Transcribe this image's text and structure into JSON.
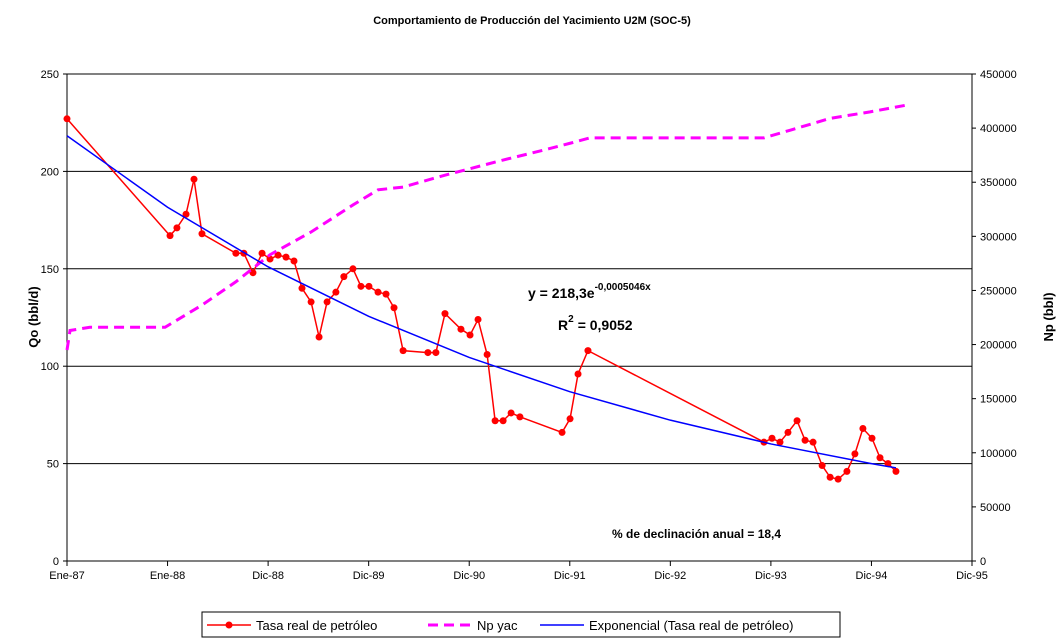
{
  "chart_data": {
    "type": "line",
    "title": "Comportamiento de Producción del Yacimiento U2M (SOC-5)",
    "ylabel": "Qo (bbl/d)",
    "y2label": "Np (bbl)",
    "xlim": [
      31778,
      35063
    ],
    "xticks": [
      {
        "value": 31778,
        "label": "Ene-87"
      },
      {
        "value": 32143,
        "label": "Ene-88"
      },
      {
        "value": 32508,
        "label": "Dic-88"
      },
      {
        "value": 32873,
        "label": "Dic-89"
      },
      {
        "value": 33238,
        "label": "Dic-90"
      },
      {
        "value": 33603,
        "label": "Dic-91"
      },
      {
        "value": 33968,
        "label": "Dic-92"
      },
      {
        "value": 34333,
        "label": "Dic-93"
      },
      {
        "value": 34698,
        "label": "Dic-94"
      },
      {
        "value": 35063,
        "label": "Dic-95"
      }
    ],
    "ylim": [
      0,
      250
    ],
    "yticks": [
      0,
      50,
      100,
      150,
      200,
      250
    ],
    "y2lim": [
      0,
      450000
    ],
    "y2ticks": [
      0,
      50000,
      100000,
      150000,
      200000,
      250000,
      300000,
      350000,
      400000,
      450000
    ],
    "grid": true,
    "legend": "bottom",
    "series": [
      {
        "name": "Tasa real de petróleo",
        "color": "#ff0000",
        "marker": true,
        "x": [
          31778,
          32152,
          32177,
          32210,
          32239,
          32268,
          32391,
          32420,
          32453,
          32486,
          32515,
          32544,
          32573,
          32602,
          32631,
          32664,
          32693,
          32722,
          32754,
          32783,
          32816,
          32845,
          32874,
          32907,
          32936,
          32965,
          32998,
          33088,
          33117,
          33150,
          33208,
          33241,
          33270,
          33303,
          33332,
          33361,
          33390,
          33422,
          33575,
          33604,
          33633,
          33669,
          34308,
          34337,
          34366,
          34395,
          34428,
          34457,
          34486,
          34519,
          34548,
          34577,
          34609,
          34638,
          34667,
          34700,
          34729,
          34758,
          34787
        ],
        "values": [
          227,
          167,
          171,
          178,
          196,
          168,
          158,
          158,
          148,
          158,
          155,
          157,
          156,
          154,
          140,
          133,
          115,
          133,
          138,
          146,
          150,
          141,
          141,
          138,
          137,
          130,
          108,
          107,
          107,
          127,
          119,
          116,
          124,
          106,
          72,
          72,
          76,
          74,
          66,
          73,
          96,
          108,
          61,
          63,
          61,
          66,
          72,
          62,
          61,
          49,
          43,
          42,
          46,
          55,
          68,
          63,
          53,
          50,
          46
        ]
      },
      {
        "name": "Np yac",
        "color": "#ff00ff",
        "axis": "y2",
        "dashed": true,
        "x": [
          31778,
          31789,
          31861,
          32134,
          32268,
          32391,
          32515,
          32664,
          32816,
          32907,
          32998,
          33150,
          33361,
          33513,
          33604,
          33676,
          34308,
          34402,
          34548,
          34693,
          34820
        ],
        "values": [
          195000,
          213000,
          216000,
          216000,
          236500,
          258000,
          283000,
          304000,
          329000,
          343000,
          345500,
          356500,
          370500,
          380000,
          386000,
          391000,
          391000,
          398000,
          409000,
          415000,
          421000
        ]
      },
      {
        "name": "Exponencial (Tasa real de petróleo)",
        "color": "#0000ff",
        "x": [
          31778,
          32143,
          32508,
          32873,
          33238,
          33603,
          33968,
          34333,
          34698,
          34787
        ],
        "values": [
          218.3,
          181.6,
          151.0,
          125.6,
          104.5,
          86.9,
          72.3,
          60.1,
          50.0,
          47.8
        ]
      }
    ],
    "annotations": {
      "equation": [
        "y = 218,3e",
        "-0,0005046x"
      ],
      "r2": [
        "R",
        "2",
        "= 0,9052"
      ],
      "decline": "% de declinación anual = 18,4"
    }
  }
}
